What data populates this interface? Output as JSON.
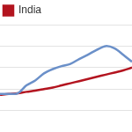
{
  "chart_data": {
    "type": "line",
    "categories": [
      null,
      null,
      null,
      null,
      null,
      null,
      null,
      null,
      null,
      null,
      null,
      null,
      null,
      null,
      null,
      null
    ],
    "series": [
      {
        "color": "#6b90c9",
        "values": [
          1.77,
          1.77,
          1.8,
          2.17,
          2.4,
          2.73,
          2.93,
          3.07,
          3.17,
          3.4,
          3.6,
          3.83,
          4.0,
          3.9,
          3.6,
          3.27
        ]
      },
      {
        "name": "India",
        "color": "#b3141f",
        "values": [
          1.73,
          1.77,
          1.8,
          1.87,
          1.93,
          2.0,
          2.07,
          2.17,
          2.27,
          2.37,
          2.47,
          2.57,
          2.67,
          2.77,
          2.87,
          3.0
        ]
      }
    ],
    "ylim": [
      0,
      5
    ],
    "yticks": [
      0,
      1,
      2,
      3,
      4,
      5
    ],
    "grid": true,
    "legend": "top-left",
    "tick_labels": false
  }
}
